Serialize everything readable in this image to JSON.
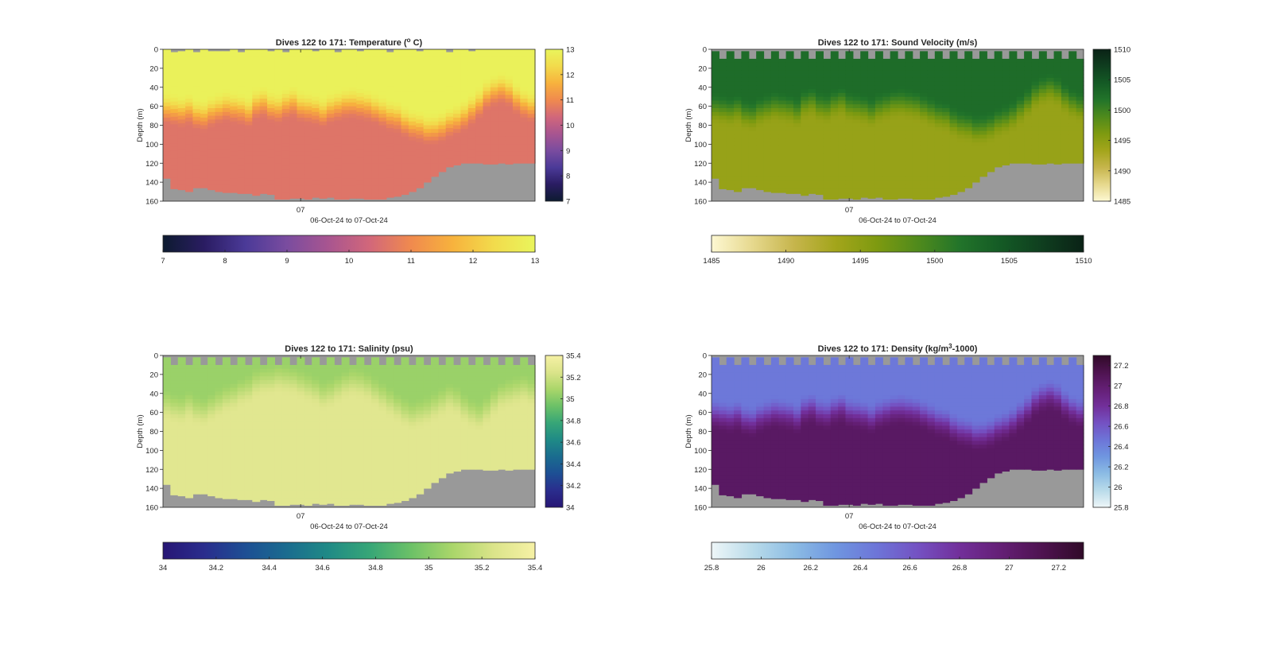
{
  "figure": {
    "background": "#ffffff",
    "bathymetry_color": "#999999"
  },
  "chart_data": [
    {
      "type": "heatmap",
      "variable": "temperature",
      "title": "Dives 122 to 171: Temperature",
      "title_unit_parts": [
        "(",
        "o",
        " C)"
      ],
      "ylabel": "Depth (m)",
      "xlabel": "06-Oct-24 to 07-Oct-24",
      "x_ticks": [
        "07"
      ],
      "x_tick_fraction": [
        0.37
      ],
      "y_ticks": [
        0,
        20,
        40,
        60,
        80,
        100,
        120,
        140,
        160
      ],
      "ylim": [
        0,
        160
      ],
      "y_reversed": true,
      "dives": [
        122,
        171
      ],
      "clim": [
        7,
        13
      ],
      "colorbar_ticks": [
        7,
        8,
        9,
        10,
        11,
        12,
        13
      ],
      "colormap": [
        "#0d1b30",
        "#2a1c62",
        "#4b3a98",
        "#7a4c9f",
        "#a85590",
        "#d2677a",
        "#f08a4e",
        "#f7b23d",
        "#f2db4c",
        "#e9f55c"
      ],
      "mixed_layer_value": 12.9,
      "deep_value": 10.6,
      "thermocline_depth_m": [
        62,
        64,
        66,
        64,
        68,
        70,
        66,
        62,
        60,
        62,
        64,
        66,
        58,
        56,
        60,
        62,
        58,
        56,
        60,
        62,
        64,
        66,
        62,
        60,
        58,
        56,
        58,
        60,
        62,
        66,
        70,
        72,
        76,
        80,
        82,
        84,
        84,
        82,
        78,
        74,
        70,
        64,
        56,
        48,
        44,
        42,
        44,
        52,
        58,
        60
      ],
      "max_depth_m": [
        136,
        147,
        148,
        150,
        146,
        146,
        148,
        150,
        151,
        151,
        152,
        152,
        154,
        152,
        153,
        158,
        158,
        157,
        157,
        158,
        156,
        157,
        156,
        158,
        158,
        157,
        157,
        158,
        158,
        158,
        156,
        155,
        153,
        150,
        146,
        140,
        134,
        129,
        124,
        122,
        120,
        120,
        120,
        121,
        121,
        120,
        121,
        120,
        120,
        120
      ],
      "surface_gap_m": [
        0,
        3,
        2,
        0,
        3,
        0,
        2,
        2,
        2,
        0,
        3,
        0,
        0,
        0,
        2,
        0,
        3,
        0,
        0,
        0,
        2,
        0,
        0,
        3,
        0,
        0,
        2,
        0,
        0,
        0,
        3,
        0,
        0,
        0,
        2,
        0,
        0,
        0,
        3,
        0,
        0,
        2,
        0,
        0,
        0,
        0,
        0,
        0,
        0,
        0
      ]
    },
    {
      "type": "heatmap",
      "variable": "sound_velocity",
      "title": "Dives 122 to 171: Sound Velocity (m/s)",
      "ylabel": "Depth (m)",
      "xlabel": "06-Oct-24 to 07-Oct-24",
      "x_ticks": [
        "07"
      ],
      "x_tick_fraction": [
        0.37
      ],
      "y_ticks": [
        0,
        20,
        40,
        60,
        80,
        100,
        120,
        140,
        160
      ],
      "ylim": [
        0,
        160
      ],
      "y_reversed": true,
      "dives": [
        122,
        171
      ],
      "clim": [
        1485,
        1510
      ],
      "colorbar_ticks": [
        1485,
        1490,
        1495,
        1500,
        1505,
        1510
      ],
      "colormap": [
        "#fdf8d2",
        "#e6d88d",
        "#c6b54c",
        "#a3a51b",
        "#7e9a10",
        "#4f8a1c",
        "#22742a",
        "#145a25",
        "#0f3e1f",
        "#0a2216"
      ],
      "mixed_layer_value": 1502.5,
      "deep_value": 1494.2,
      "thermocline_depth_m": [
        62,
        64,
        66,
        64,
        68,
        70,
        66,
        62,
        60,
        62,
        64,
        66,
        58,
        56,
        60,
        62,
        58,
        56,
        60,
        62,
        64,
        66,
        62,
        60,
        58,
        56,
        58,
        60,
        62,
        66,
        70,
        72,
        76,
        80,
        82,
        84,
        84,
        82,
        78,
        74,
        70,
        64,
        56,
        48,
        44,
        42,
        44,
        52,
        58,
        60
      ],
      "max_depth_m": [
        136,
        147,
        148,
        150,
        146,
        146,
        148,
        150,
        151,
        151,
        152,
        152,
        154,
        152,
        153,
        158,
        158,
        157,
        157,
        158,
        156,
        157,
        156,
        158,
        158,
        157,
        157,
        158,
        158,
        158,
        156,
        155,
        153,
        150,
        146,
        140,
        134,
        129,
        124,
        122,
        120,
        120,
        120,
        121,
        121,
        120,
        121,
        120,
        120,
        120
      ],
      "surface_gap_m": [
        2,
        10,
        2,
        10,
        2,
        10,
        2,
        10,
        2,
        10,
        2,
        10,
        2,
        10,
        2,
        10,
        2,
        10,
        2,
        10,
        2,
        10,
        2,
        10,
        2,
        10,
        2,
        10,
        2,
        10,
        2,
        10,
        2,
        10,
        2,
        10,
        2,
        10,
        2,
        10,
        2,
        10,
        2,
        10,
        2,
        10,
        2,
        10,
        2,
        10
      ]
    },
    {
      "type": "heatmap",
      "variable": "salinity",
      "title": "Dives 122 to 171: Salinity (psu)",
      "ylabel": "Depth (m)",
      "xlabel": "06-Oct-24 to 07-Oct-24",
      "x_ticks": [
        "07"
      ],
      "x_tick_fraction": [
        0.37
      ],
      "y_ticks": [
        0,
        20,
        40,
        60,
        80,
        100,
        120,
        140,
        160
      ],
      "ylim": [
        0,
        160
      ],
      "y_reversed": true,
      "dives": [
        122,
        171
      ],
      "clim": [
        34,
        35.4
      ],
      "colorbar_ticks": [
        34,
        34.2,
        34.4,
        34.6,
        34.8,
        35,
        35.2,
        35.4
      ],
      "colormap": [
        "#271675",
        "#2a2d8d",
        "#1d4f94",
        "#1a6c8f",
        "#1f8a86",
        "#37a677",
        "#6cc167",
        "#aad66a",
        "#dbe48a",
        "#f6f1a5"
      ],
      "mixed_layer_value": 35.05,
      "deep_value": 35.28,
      "thermocline_depth_m": [
        52,
        56,
        58,
        54,
        58,
        60,
        56,
        50,
        46,
        44,
        40,
        36,
        30,
        28,
        26,
        24,
        26,
        28,
        30,
        34,
        38,
        42,
        40,
        36,
        32,
        28,
        30,
        34,
        38,
        44,
        50,
        56,
        60,
        64,
        62,
        58,
        54,
        50,
        46,
        48,
        56,
        62,
        64,
        58,
        50,
        44,
        40,
        38,
        36,
        38
      ],
      "max_depth_m": [
        136,
        147,
        148,
        150,
        146,
        146,
        148,
        150,
        151,
        151,
        152,
        152,
        154,
        152,
        153,
        158,
        158,
        157,
        157,
        158,
        156,
        157,
        156,
        158,
        158,
        157,
        157,
        158,
        158,
        158,
        156,
        155,
        153,
        150,
        146,
        140,
        134,
        129,
        124,
        122,
        120,
        120,
        120,
        121,
        121,
        120,
        121,
        120,
        120,
        120
      ],
      "surface_gap_m": [
        2,
        10,
        2,
        10,
        2,
        10,
        2,
        10,
        2,
        10,
        2,
        10,
        2,
        10,
        2,
        10,
        2,
        10,
        2,
        10,
        2,
        10,
        2,
        10,
        2,
        10,
        2,
        10,
        2,
        10,
        2,
        10,
        2,
        10,
        2,
        10,
        2,
        10,
        2,
        10,
        2,
        10,
        2,
        10,
        2,
        10,
        2,
        10,
        2,
        10
      ]
    },
    {
      "type": "heatmap",
      "variable": "density",
      "title": "Dives 122 to 171: Density",
      "title_unit_parts": [
        "(kg/m",
        "3",
        "-1000)"
      ],
      "ylabel": "Depth (m)",
      "xlabel": "06-Oct-24 to 07-Oct-24",
      "x_ticks": [
        "07"
      ],
      "x_tick_fraction": [
        0.37
      ],
      "y_ticks": [
        0,
        20,
        40,
        60,
        80,
        100,
        120,
        140,
        160
      ],
      "ylim": [
        0,
        160
      ],
      "y_reversed": true,
      "dives": [
        122,
        171
      ],
      "clim": [
        25.8,
        27.3
      ],
      "colorbar_ticks": [
        25.8,
        26,
        26.2,
        26.4,
        26.6,
        26.8,
        27,
        27.2
      ],
      "colormap": [
        "#eef6f8",
        "#b9dbea",
        "#8cbce4",
        "#6f96e0",
        "#6d75d8",
        "#7451c2",
        "#722f9a",
        "#641f75",
        "#4e1350",
        "#300a28"
      ],
      "mixed_layer_value": 26.45,
      "deep_value": 27.05,
      "thermocline_depth_m": [
        62,
        64,
        66,
        64,
        68,
        70,
        66,
        62,
        60,
        62,
        64,
        66,
        58,
        56,
        60,
        62,
        58,
        56,
        60,
        62,
        64,
        66,
        62,
        60,
        58,
        56,
        58,
        60,
        62,
        66,
        70,
        72,
        76,
        80,
        82,
        84,
        84,
        82,
        78,
        74,
        70,
        64,
        56,
        48,
        44,
        42,
        44,
        52,
        58,
        60
      ],
      "max_depth_m": [
        136,
        147,
        148,
        150,
        146,
        146,
        148,
        150,
        151,
        151,
        152,
        152,
        154,
        152,
        153,
        158,
        158,
        157,
        157,
        158,
        156,
        157,
        156,
        158,
        158,
        157,
        157,
        158,
        158,
        158,
        156,
        155,
        153,
        150,
        146,
        140,
        134,
        129,
        124,
        122,
        120,
        120,
        120,
        121,
        121,
        120,
        121,
        120,
        120,
        120
      ],
      "surface_gap_m": [
        2,
        10,
        2,
        10,
        2,
        10,
        2,
        10,
        2,
        10,
        2,
        10,
        2,
        10,
        2,
        10,
        2,
        10,
        2,
        10,
        2,
        10,
        2,
        10,
        2,
        10,
        2,
        10,
        2,
        10,
        2,
        10,
        2,
        10,
        2,
        10,
        2,
        10,
        2,
        10,
        2,
        10,
        2,
        10,
        2,
        10,
        2,
        10,
        2,
        10
      ]
    }
  ]
}
